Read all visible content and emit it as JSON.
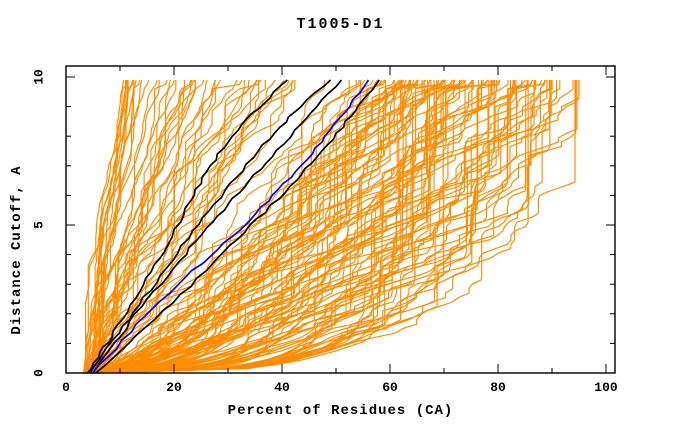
{
  "chart_data": {
    "type": "line",
    "title": "T1005-D1",
    "xlabel": "Percent of Residues (CA)",
    "ylabel": "Distance Cutoff, A",
    "xlim": [
      0,
      100
    ],
    "ylim": [
      0,
      10
    ],
    "grid": false,
    "legend": "none",
    "x_ticks_major": [
      0,
      20,
      40,
      60,
      80,
      100
    ],
    "x_ticks_minor": [
      10,
      30,
      50,
      70,
      90
    ],
    "y_ticks_major": [
      0,
      5,
      10
    ],
    "y_ticks_minor": [
      1,
      2,
      3,
      4,
      6,
      7,
      8,
      9
    ],
    "curve_y_max": 9.9,
    "colors": {
      "ensemble": "#ff8c00",
      "highlight": "#000000",
      "reference": "#0000ff",
      "frame": "#000000",
      "background": "#ffffff"
    },
    "ensemble": {
      "name": "predicted-models-ensemble",
      "description": "bundle of model accuracy curves, cumulative percent of CA residues under distance cutoff",
      "color": "#ff8c00",
      "count": 150,
      "seed": 20181005,
      "x_start_range": [
        3,
        6.5
      ],
      "groups": [
        {
          "count": 9,
          "x_end_range": [
            10.5,
            13
          ]
        },
        {
          "count": 9,
          "x_end_range": [
            13,
            20
          ]
        },
        {
          "count": 32,
          "x_end_range": [
            20,
            55
          ]
        },
        {
          "count": 22,
          "x_end_range": [
            55,
            63
          ]
        },
        {
          "count": 71,
          "x_end_range": [
            63,
            89
          ]
        },
        {
          "count": 7,
          "x_end_range": [
            89,
            93.5
          ]
        }
      ],
      "shape": {
        "q_base": 1.45,
        "q_slope": -0.0135,
        "q_jitter": 0.15,
        "wiggle_frac": 0.055
      }
    },
    "highlighted_series": [
      {
        "name": "highlighted-model-1",
        "color": "#000000",
        "points": [
          [
            4,
            0
          ],
          [
            6.5,
            0.7
          ],
          [
            9,
            1.4
          ],
          [
            12,
            2.3
          ],
          [
            15,
            3.2
          ],
          [
            18,
            4.1
          ],
          [
            21,
            5.1
          ],
          [
            23.5,
            6
          ],
          [
            26,
            6.8
          ],
          [
            29,
            7.6
          ],
          [
            32.5,
            8.4
          ],
          [
            36.5,
            9.1
          ],
          [
            41,
            9.9
          ]
        ]
      },
      {
        "name": "highlighted-model-2",
        "color": "#000000",
        "points": [
          [
            4.5,
            0
          ],
          [
            8,
            0.9
          ],
          [
            11.5,
            1.8
          ],
          [
            15.5,
            2.8
          ],
          [
            19.5,
            3.8
          ],
          [
            23.5,
            4.8
          ],
          [
            27.5,
            5.7
          ],
          [
            31.5,
            6.6
          ],
          [
            35.5,
            7.5
          ],
          [
            39.5,
            8.3
          ],
          [
            43.5,
            9.0
          ],
          [
            49,
            9.9
          ]
        ]
      },
      {
        "name": "highlighted-model-3",
        "color": "#000000",
        "points": [
          [
            5,
            0
          ],
          [
            9,
            1
          ],
          [
            13,
            2
          ],
          [
            17.5,
            3
          ],
          [
            22,
            4
          ],
          [
            26,
            4.9
          ],
          [
            30,
            5.7
          ],
          [
            34,
            6.5
          ],
          [
            38,
            7.3
          ],
          [
            42.5,
            8.2
          ],
          [
            46.5,
            9.0
          ],
          [
            51,
            9.9
          ]
        ]
      },
      {
        "name": "highlighted-model-4",
        "color": "#000000",
        "points": [
          [
            5.5,
            0
          ],
          [
            11.5,
            1
          ],
          [
            18,
            2.1
          ],
          [
            24.5,
            3.2
          ],
          [
            30.5,
            4.3
          ],
          [
            35.5,
            5.2
          ],
          [
            40.5,
            6.1
          ],
          [
            44.5,
            6.9
          ],
          [
            48.5,
            7.7
          ],
          [
            52,
            8.5
          ],
          [
            55,
            9.2
          ],
          [
            58,
            9.9
          ]
        ]
      },
      {
        "name": "highlighted-model-blue",
        "color": "#0000ff",
        "points": [
          [
            5,
            0
          ],
          [
            10.5,
            1.1
          ],
          [
            16,
            2.2
          ],
          [
            22,
            3.2
          ],
          [
            28,
            4.2
          ],
          [
            33,
            5.0
          ],
          [
            37.5,
            5.8
          ],
          [
            41.5,
            6.6
          ],
          [
            45.5,
            7.4
          ],
          [
            49,
            8.2
          ],
          [
            52.5,
            9.0
          ],
          [
            56,
            9.9
          ]
        ]
      }
    ]
  }
}
